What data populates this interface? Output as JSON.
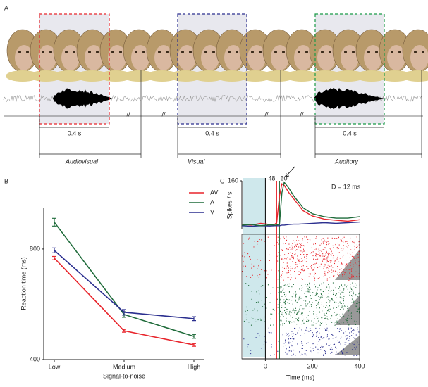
{
  "panel_labels": [
    "A",
    "B",
    "C"
  ],
  "diagram": {
    "durations": [
      "0.4 s",
      "0.4 s",
      "0.4 s"
    ],
    "conditions": [
      {
        "label": "Audiovisual",
        "color": "#e8242b"
      },
      {
        "label": "Visual",
        "color": "#2b2f8f"
      },
      {
        "label": "Auditory",
        "color": "#1a9a48"
      }
    ]
  },
  "chart_data": [
    {
      "type": "line",
      "x_label": "Signal-to-noise",
      "y_label": "Reaction time (ms)",
      "categories": [
        "Low",
        "Medium",
        "High"
      ],
      "series": [
        {
          "name": "AV",
          "color": "#e8242b",
          "values": [
            767,
            504,
            453
          ],
          "errors": [
            6,
            5,
            5
          ]
        },
        {
          "name": "A",
          "color": "#1f6b3a",
          "values": [
            897,
            563,
            484
          ],
          "errors": [
            14,
            10,
            7
          ]
        },
        {
          "name": "V",
          "color": "#2b2f8f",
          "values": [
            795,
            571,
            548
          ],
          "errors": [
            9,
            10,
            7
          ]
        }
      ],
      "ylim": [
        400,
        950
      ],
      "yticks": [
        400,
        800
      ]
    },
    {
      "type": "psth",
      "x_label": "Time (ms)",
      "y_label": "Spikes / s",
      "annotations": [
        "48",
        "60",
        "D = 12 ms"
      ],
      "x": [
        -100,
        -60,
        -20,
        20,
        40,
        48,
        60,
        70,
        80,
        100,
        120,
        140,
        160,
        200,
        250,
        300,
        350,
        400
      ],
      "series": [
        {
          "color": "#e8242b",
          "values": [
            15,
            12,
            18,
            14,
            15,
            20,
            110,
            150,
            145,
            120,
            100,
            80,
            60,
            42,
            32,
            28,
            25,
            30
          ]
        },
        {
          "color": "#1f6b3a",
          "values": [
            12,
            14,
            10,
            13,
            12,
            12,
            15,
            120,
            155,
            135,
            110,
            90,
            70,
            50,
            40,
            35,
            35,
            40
          ]
        },
        {
          "color": "#2b2f8f",
          "values": [
            10,
            8,
            10,
            9,
            10,
            10,
            10,
            12,
            12,
            14,
            15,
            15,
            16,
            18,
            20,
            18,
            20,
            22
          ]
        }
      ],
      "markers": [
        0,
        48,
        60
      ],
      "xlim": [
        -100,
        400
      ],
      "xticks": [
        0,
        200,
        400
      ],
      "ylim": [
        0,
        160
      ],
      "yticks": [
        160
      ]
    }
  ]
}
